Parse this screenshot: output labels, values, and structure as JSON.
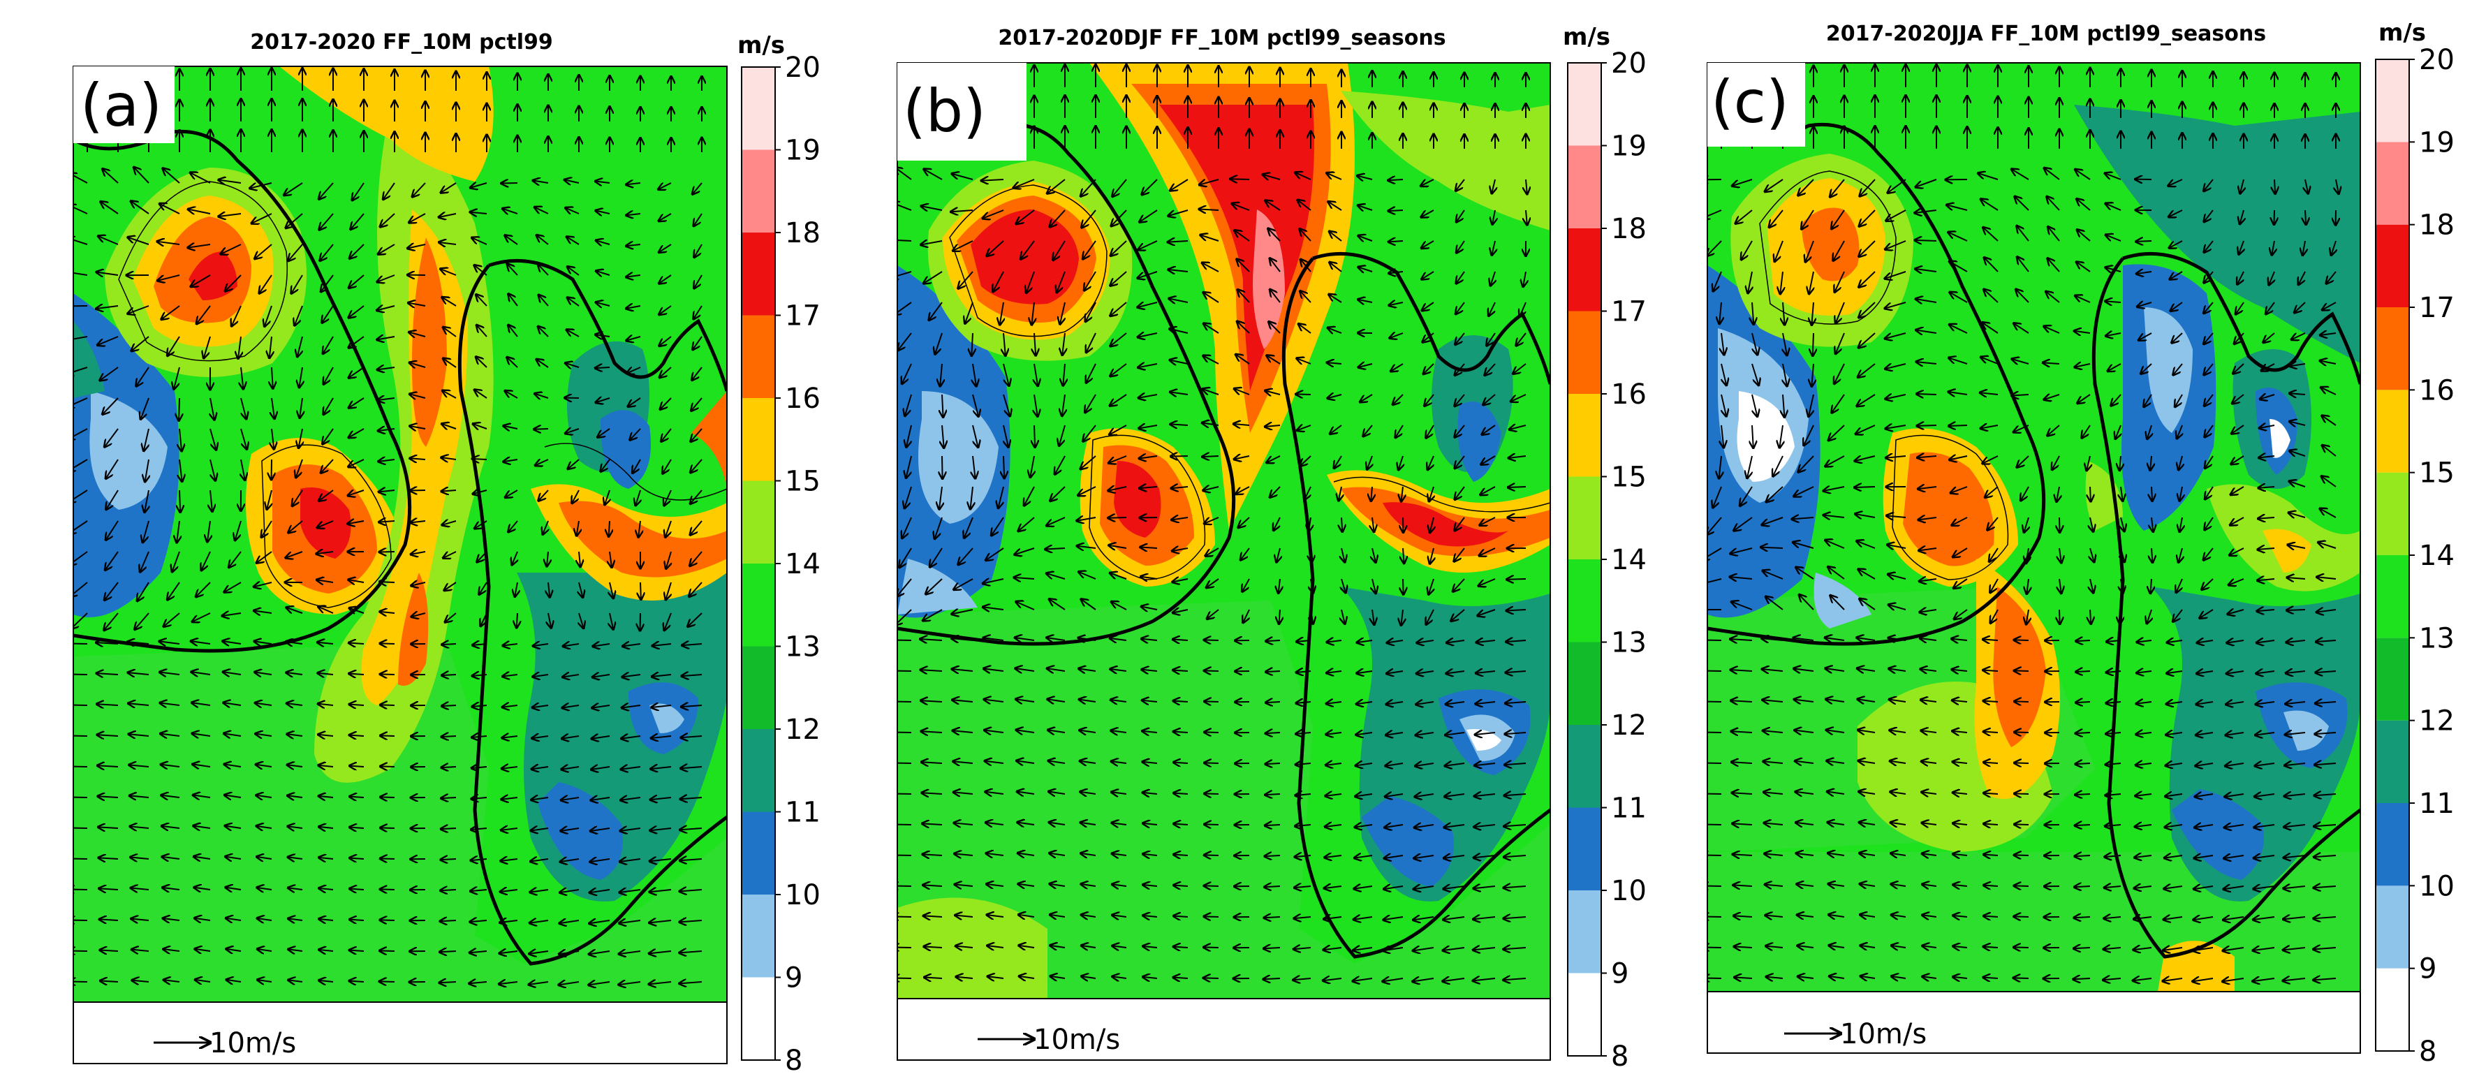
{
  "chart_data": [
    {
      "type": "heatmap",
      "panel": "(a)",
      "title": "2017-2020 FF_10M pctl99",
      "colorbar": {
        "unit": "m/s",
        "min": 8,
        "max": 20,
        "ticks": [
          8,
          9,
          10,
          11,
          12,
          13,
          14,
          15,
          16,
          17,
          18,
          19,
          20
        ]
      },
      "reference_vector": "10m/s"
    },
    {
      "type": "heatmap",
      "panel": "(b)",
      "title": "2017-2020DJF FF_10M pctl99_seasons",
      "colorbar": {
        "unit": "m/s",
        "min": 8,
        "max": 20,
        "ticks": [
          8,
          9,
          10,
          11,
          12,
          13,
          14,
          15,
          16,
          17,
          18,
          19,
          20
        ]
      },
      "reference_vector": "10m/s"
    },
    {
      "type": "heatmap",
      "panel": "(c)",
      "title": "2017-2020JJA FF_10M pctl99_seasons",
      "colorbar": {
        "unit": "m/s",
        "min": 8,
        "max": 20,
        "ticks": [
          8,
          9,
          10,
          11,
          12,
          13,
          14,
          15,
          16,
          17,
          18,
          19,
          20
        ]
      },
      "reference_vector": "10m/s"
    }
  ],
  "colors": {
    "levels": [
      "#ffffff",
      "#8ec4ea",
      "#1f74c8",
      "#159a78",
      "#12bb2a",
      "#1ee21e",
      "#96e81e",
      "#ffcc00",
      "#ff6a00",
      "#ee1111",
      "#ff8888",
      "#fde0e0"
    ]
  }
}
